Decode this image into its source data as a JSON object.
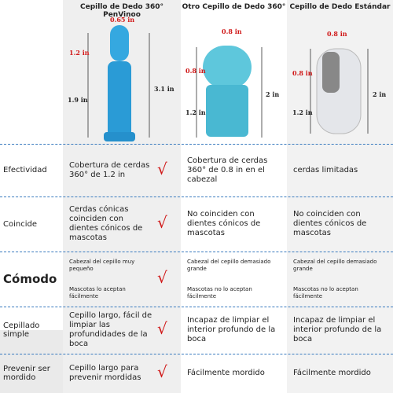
{
  "columns": [
    {
      "title": "Cepillo de Dedo 360° PenVinoo",
      "dimensions": [
        "0.65 in",
        "1.2 in",
        "1.9 in",
        "3.1 in"
      ]
    },
    {
      "title": "Otro Cepillo de Dedo 360°",
      "dimensions": [
        "0.8 in",
        "0.8 in",
        "1.2 in",
        "2 in"
      ]
    },
    {
      "title": "Cepillo de Dedo Estándar",
      "dimensions": [
        "0.8 in",
        "0.8 in",
        "1.2 in",
        "2 in"
      ]
    }
  ],
  "rows": [
    {
      "label": "Efectividad",
      "check": "√",
      "cells": [
        [
          "Cobertura de cerdas 360° de 1.2 in"
        ],
        [
          "Cobertura de cerdas 360° de 0.8 in en el cabezal"
        ],
        [
          "cerdas limitadas"
        ]
      ]
    },
    {
      "label": "Coincide",
      "check": "√",
      "cells": [
        [
          "Cerdas cónicas coinciden con dientes cónicos de mascotas"
        ],
        [
          "No coinciden con dientes cónicos de mascotas"
        ],
        [
          "No coinciden con dientes cónicos de mascotas"
        ]
      ]
    },
    {
      "label": "Cómodo",
      "check": "√",
      "cells": [
        [
          "Cabezal del cepillo muy pequeño",
          "Mascotas lo aceptan fácilmente"
        ],
        [
          "Cabezal del cepillo demasiado grande",
          "Mascotas no lo aceptan fácilmente"
        ],
        [
          "Cabezal del cepillo demasiado grande",
          "Mascotas no lo aceptan fácilmente"
        ]
      ]
    },
    {
      "label": "Cepillado simple",
      "check": "√",
      "cells": [
        [
          "Cepillo largo, fácil de limpiar las profundidades de la boca"
        ],
        [
          "Incapaz de limpiar el interior profundo de la boca"
        ],
        [
          "Incapaz de limpiar el interior profundo de la boca"
        ]
      ]
    },
    {
      "label": "Prevenir ser mordido",
      "check": "√",
      "cells": [
        [
          "Cepillo largo para prevenir mordidas"
        ],
        [
          "Fácilmente mordido"
        ],
        [
          "Fácilmente mordido"
        ]
      ]
    }
  ]
}
